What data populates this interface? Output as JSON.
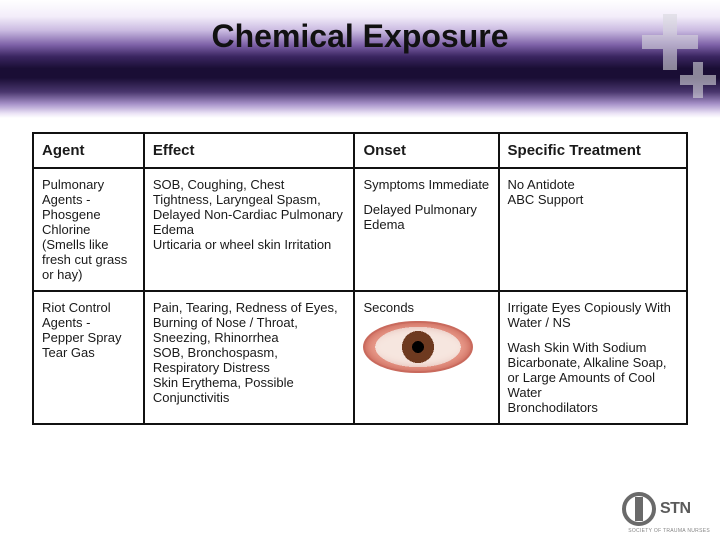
{
  "title": "Chemical Exposure",
  "table": {
    "headers": {
      "agent": "Agent",
      "effect": "Effect",
      "onset": "Onset",
      "treatment": "Specific Treatment"
    },
    "row1": {
      "agent_l1": "Pulmonary Agents -",
      "agent_l2": "Phosgene",
      "agent_l3": "Chlorine",
      "agent_l4": "(Smells like fresh cut grass or hay)",
      "effect_l1": "SOB, Coughing, Chest Tightness, Laryngeal Spasm, Delayed Non-Cardiac Pulmonary Edema",
      "effect_l2": "Urticaria or wheel skin Irritation",
      "onset_l1": "Symptoms Immediate",
      "onset_l2": "Delayed Pulmonary Edema",
      "treat_l1": "No Antidote",
      "treat_l2": "ABC Support"
    },
    "row2": {
      "agent_l1": "Riot Control Agents -",
      "agent_l2": "Pepper Spray",
      "agent_l3": "Tear Gas",
      "effect_l1": "Pain, Tearing, Redness of Eyes, Burning of Nose / Throat, Sneezing, Rhinorrhea",
      "effect_l2": "SOB, Bronchospasm, Respiratory Distress",
      "effect_l3": "Skin Erythema, Possible Conjunctivitis",
      "onset_l1": "Seconds",
      "treat_l1": "Irrigate Eyes Copiously With  Water / NS",
      "treat_l2": "Wash Skin With Sodium Bicarbonate, Alkaline Soap, or Large Amounts of Cool Water",
      "treat_l3": "Bronchodilators"
    }
  },
  "logo": {
    "text": "STN",
    "subtitle": "SOCIETY OF TRAUMA NURSES"
  },
  "colors": {
    "border": "#111111",
    "text": "#1a1a1a",
    "background": "#ffffff"
  }
}
